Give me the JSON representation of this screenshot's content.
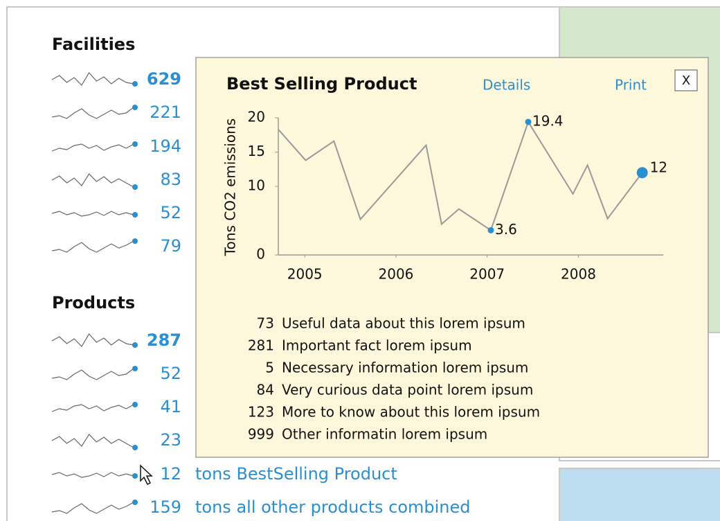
{
  "facilities": {
    "title": "Facilities",
    "items": [
      {
        "value": 629
      },
      {
        "value": 221
      },
      {
        "value": 194
      },
      {
        "value": 83
      },
      {
        "value": 52
      },
      {
        "value": 79
      }
    ]
  },
  "products": {
    "title": "Products",
    "items": [
      {
        "value": 287
      },
      {
        "value": 52
      },
      {
        "value": 41
      },
      {
        "value": 23
      },
      {
        "value": 12,
        "label": "tons BestSelling Product"
      },
      {
        "value": 159,
        "label": "tons all other products combined"
      }
    ]
  },
  "popup": {
    "title": "Best Selling Product",
    "links": [
      "Details",
      "Print"
    ],
    "close": "X",
    "chart_data": {
      "type": "line",
      "ylabel": "Tons CO2 emissions",
      "x": [
        2004.71,
        2005.01,
        2005.32,
        2005.61,
        2006.33,
        2006.5,
        2006.69,
        2007.04,
        2007.45,
        2007.94,
        2008.1,
        2008.32,
        2008.7
      ],
      "values": [
        18.3,
        13.8,
        16.6,
        5.2,
        16.0,
        4.5,
        6.7,
        3.6,
        19.4,
        8.9,
        13.1,
        5.3,
        12
      ],
      "value_labels": [
        null,
        null,
        null,
        null,
        null,
        null,
        null,
        "3.6",
        "19.4",
        null,
        null,
        null,
        "12"
      ],
      "color": "#999999",
      "marker_color": "#2a8fd0",
      "xlim": [
        2004.71,
        2008.93
      ],
      "xticks": [
        2005,
        2006,
        2007,
        2008
      ],
      "ylim": [
        0,
        20
      ],
      "yticks": [
        0,
        10,
        15,
        20
      ]
    },
    "list": [
      {
        "value": 73,
        "text": "Useful data about this lorem ipsum"
      },
      {
        "value": 281,
        "text": "Important fact lorem ipsum"
      },
      {
        "value": 5,
        "text": "Necessary information lorem ipsum"
      },
      {
        "value": 84,
        "text": "Very curious data point  lorem ipsum"
      },
      {
        "value": 123,
        "text": "More to know about this  lorem ipsum"
      },
      {
        "value": 999,
        "text": "Other informatin  lorem ipsum"
      }
    ]
  }
}
